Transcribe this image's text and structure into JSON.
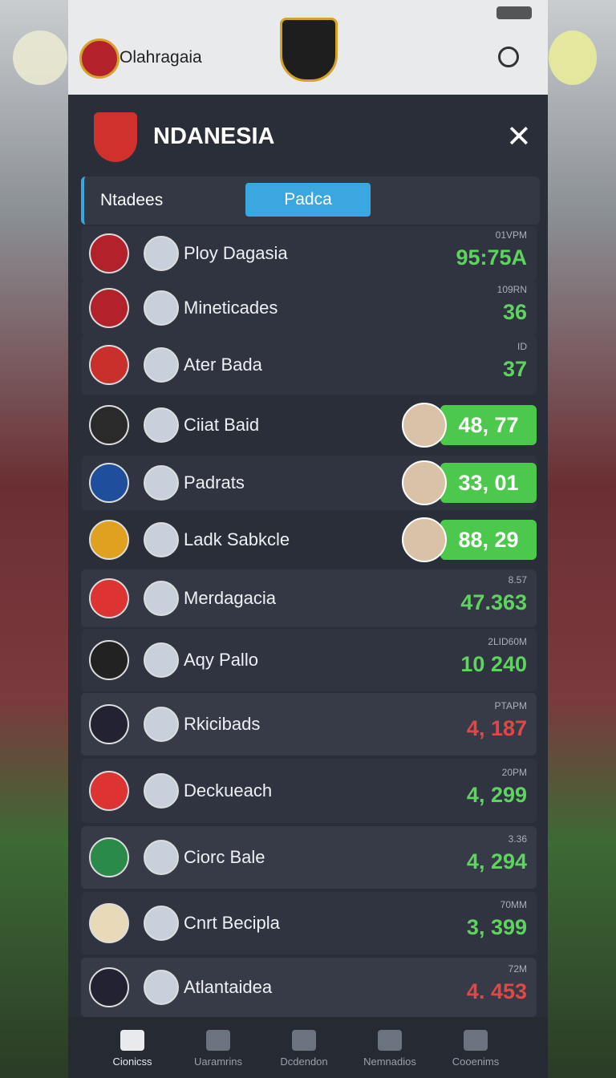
{
  "header": {
    "title": "Olahragaia"
  },
  "panel": {
    "title": "NDANESIA",
    "tabs": [
      "Ntadees",
      "Padca"
    ],
    "rows": [
      {
        "name": "Ploy Dagasia",
        "label": "01VPM",
        "score": "95:75A",
        "color": "#5fd35f"
      },
      {
        "name": "Mineticades",
        "label": "109RN",
        "score": "36",
        "color": "#5fd35f"
      },
      {
        "name": "Ater Bada",
        "label": "ID",
        "score": "37",
        "color": "#5fd35f"
      },
      {
        "name": "Ciiat Baid",
        "score": "48, 77",
        "color": "#4cc94c",
        "badge": true
      },
      {
        "name": "Padrats",
        "score": "33, 01",
        "color": "#4cc94c",
        "badge": true
      },
      {
        "name": "Ladk Sabkcle",
        "score": "88, 29",
        "color": "#4cc94c",
        "badge": true
      },
      {
        "name": "Merdagacia",
        "label": "8.57",
        "score": "47.363",
        "color": "#5fd35f"
      },
      {
        "name": "Aqy Pallo",
        "label": "2LID60M",
        "score": "10 240",
        "color": "#5fd35f"
      },
      {
        "name": "Rkicibads",
        "label": "PTAPM",
        "score": "4, 187",
        "color": "#e04848"
      },
      {
        "name": "Deckueach",
        "label": "20PM",
        "score": "4, 299",
        "color": "#5fd35f"
      },
      {
        "name": "Ciorc Bale",
        "label": "3.36",
        "score": "4, 294",
        "color": "#5fd35f"
      },
      {
        "name": "Cnrt Becipla",
        "label": "70MM",
        "score": "3, 399",
        "color": "#5fd35f"
      },
      {
        "name": "Atlantaidea",
        "label": "72M",
        "score": "4. 453",
        "color": "#e04848"
      }
    ]
  },
  "nav": [
    "Cionicss",
    "Uaramrins",
    "Dcdendon",
    "Nemnadios",
    "Cooenims"
  ]
}
